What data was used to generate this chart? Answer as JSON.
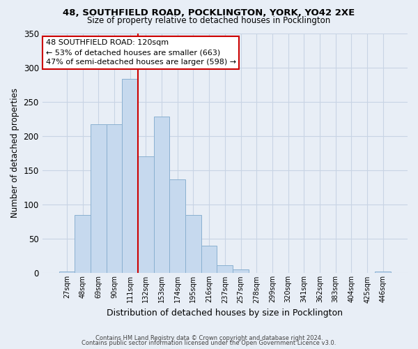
{
  "title1": "48, SOUTHFIELD ROAD, POCKLINGTON, YORK, YO42 2XE",
  "title2": "Size of property relative to detached houses in Pocklington",
  "xlabel": "Distribution of detached houses by size in Pocklington",
  "ylabel": "Number of detached properties",
  "footer1": "Contains HM Land Registry data © Crown copyright and database right 2024.",
  "footer2": "Contains public sector information licensed under the Open Government Licence v3.0.",
  "bar_labels": [
    "27sqm",
    "48sqm",
    "69sqm",
    "90sqm",
    "111sqm",
    "132sqm",
    "153sqm",
    "174sqm",
    "195sqm",
    "216sqm",
    "237sqm",
    "257sqm",
    "278sqm",
    "299sqm",
    "320sqm",
    "341sqm",
    "362sqm",
    "383sqm",
    "404sqm",
    "425sqm",
    "446sqm"
  ],
  "bar_values": [
    2,
    85,
    217,
    217,
    283,
    170,
    228,
    137,
    85,
    40,
    12,
    5,
    0,
    0,
    0,
    0,
    0,
    0,
    0,
    0,
    2
  ],
  "bar_color": "#c6d9ee",
  "bar_edgecolor": "#8ab0d0",
  "grid_color": "#c8d4e4",
  "background_color": "#e8eef6",
  "vline_color": "#cc0000",
  "annotation_text": "48 SOUTHFIELD ROAD: 120sqm\n← 53% of detached houses are smaller (663)\n47% of semi-detached houses are larger (598) →",
  "annotation_box_color": "#cc0000",
  "ylim": [
    0,
    350
  ],
  "yticks": [
    0,
    50,
    100,
    150,
    200,
    250,
    300,
    350
  ]
}
